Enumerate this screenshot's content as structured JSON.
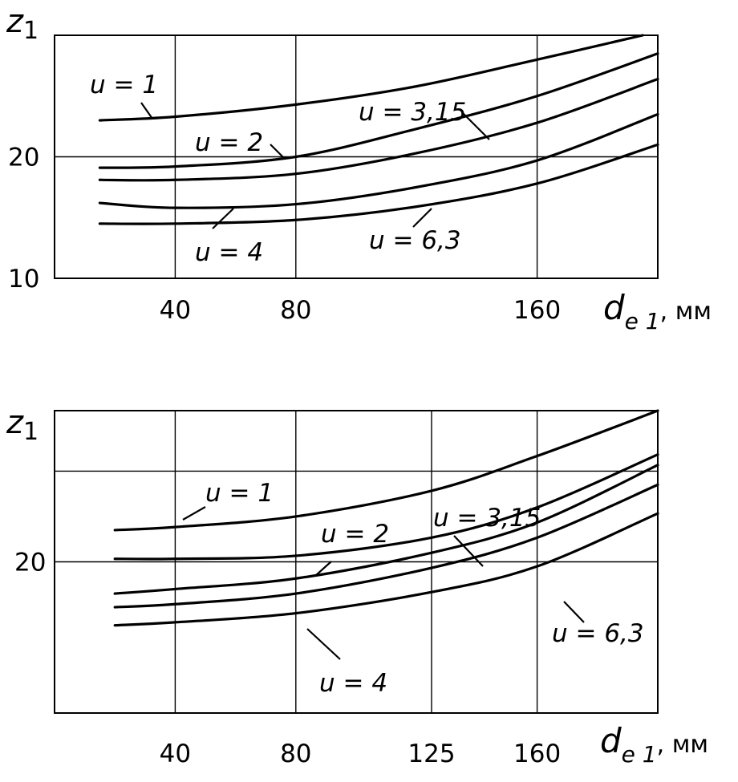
{
  "chart_data": [
    {
      "type": "line",
      "xlabel": "d",
      "xlabel_sub": "e 1",
      "xunit": ", мм",
      "ylabel": "z",
      "ylabel_sub": "1",
      "x_ticks": [
        40,
        80,
        160
      ],
      "x_tick_labels": [
        "40",
        "80",
        "160"
      ],
      "y_ticks": [
        10,
        20
      ],
      "y_tick_labels": [
        "10",
        "20"
      ],
      "xlim": [
        0,
        200
      ],
      "ylim": [
        10,
        30
      ],
      "grid": true,
      "series": [
        {
          "name": "u = 1",
          "x": [
            15,
            40,
            80,
            120,
            160,
            195
          ],
          "y": [
            23.0,
            23.3,
            24.3,
            25.8,
            28.0,
            30.0
          ]
        },
        {
          "name": "u = 2",
          "x": [
            15,
            40,
            80,
            120,
            160,
            200
          ],
          "y": [
            19.1,
            19.2,
            20.0,
            22.3,
            25.0,
            28.5
          ]
        },
        {
          "name": "u = 3,15",
          "x": [
            15,
            40,
            80,
            120,
            160,
            200
          ],
          "y": [
            18.1,
            18.1,
            18.6,
            20.3,
            22.8,
            26.4
          ]
        },
        {
          "name": "u = 4",
          "x": [
            15,
            40,
            80,
            120,
            160,
            200
          ],
          "y": [
            16.2,
            15.8,
            16.1,
            17.5,
            19.7,
            23.5
          ]
        },
        {
          "name": "u = 6,3",
          "x": [
            15,
            40,
            80,
            120,
            160,
            200
          ],
          "y": [
            14.5,
            14.5,
            14.8,
            15.9,
            17.8,
            21.0
          ]
        }
      ]
    },
    {
      "type": "line",
      "xlabel": "d",
      "xlabel_sub": "e 1",
      "xunit": ", мм",
      "ylabel": "z",
      "ylabel_sub": "1",
      "x_ticks": [
        40,
        80,
        125,
        160
      ],
      "x_tick_labels": [
        "40",
        "80",
        "125",
        "160"
      ],
      "y_ticks": [
        20
      ],
      "y_tick_labels": [
        "20"
      ],
      "xlim": [
        0,
        200
      ],
      "ylim": [
        10,
        30
      ],
      "grid": true,
      "series": [
        {
          "name": "u = 1",
          "x": [
            20,
            40,
            80,
            125,
            160,
            200
          ],
          "y": [
            22.1,
            22.3,
            23.0,
            24.7,
            27.0,
            30.0
          ]
        },
        {
          "name": "u = 2",
          "x": [
            20,
            40,
            80,
            125,
            160,
            200
          ],
          "y": [
            20.2,
            20.2,
            20.4,
            21.6,
            23.6,
            27.1
          ]
        },
        {
          "name": "u = 3,15",
          "x": [
            20,
            40,
            80,
            125,
            160,
            200
          ],
          "y": [
            17.9,
            18.2,
            18.9,
            20.6,
            22.6,
            26.4
          ]
        },
        {
          "name": "u = 4",
          "x": [
            20,
            40,
            80,
            125,
            160,
            200
          ],
          "y": [
            17.0,
            17.2,
            17.9,
            19.6,
            21.6,
            25.1
          ]
        },
        {
          "name": "u = 6,3",
          "x": [
            20,
            40,
            80,
            125,
            160,
            200
          ],
          "y": [
            15.8,
            16.0,
            16.6,
            18.0,
            19.7,
            23.2
          ]
        }
      ]
    }
  ]
}
